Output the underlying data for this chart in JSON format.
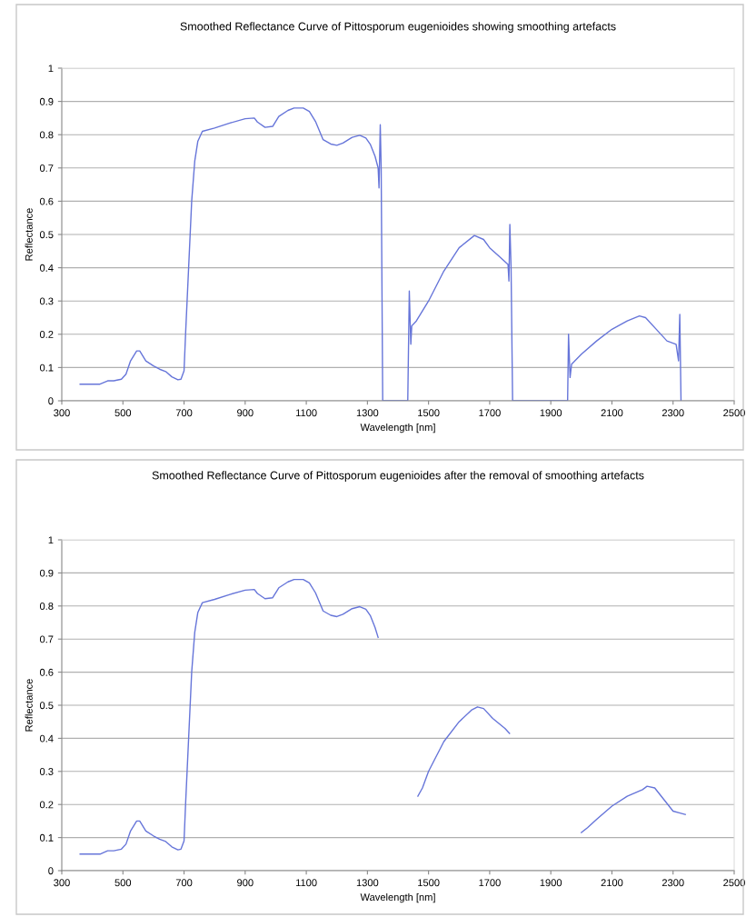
{
  "chart_data": [
    {
      "type": "line",
      "title": "Smoothed Reflectance Curve of Pittosporum eugenioides showing smoothing artefacts",
      "xlabel": "Wavelength [nm]",
      "ylabel": "Reflectance",
      "xlim": [
        300,
        2500
      ],
      "xticks": [
        300,
        500,
        700,
        900,
        1100,
        1300,
        1500,
        1700,
        1900,
        2100,
        2300,
        2500
      ],
      "ylim": [
        0,
        1
      ],
      "yticks": [
        0,
        0.1,
        0.2,
        0.3,
        0.4,
        0.5,
        0.6,
        0.7,
        0.8,
        0.9,
        1
      ],
      "grid": "y",
      "marker": "none",
      "line_style": "solid",
      "series": [
        {
          "color": "#6675d9",
          "x": [
            360,
            400,
            425,
            450,
            470,
            495,
            510,
            525,
            545,
            555,
            575,
            600,
            620,
            640,
            660,
            680,
            690,
            700,
            705,
            715,
            725,
            735,
            745,
            760,
            800,
            850,
            900,
            930,
            940,
            965,
            990,
            1010,
            1040,
            1060,
            1090,
            1110,
            1130,
            1155,
            1180,
            1200,
            1220,
            1250,
            1275,
            1295,
            1310,
            1325,
            1335,
            1338,
            1342,
            1345,
            1350,
            1432,
            1437,
            1442,
            1445,
            1460,
            1500,
            1550,
            1600,
            1650,
            1680,
            1700,
            1730,
            1760,
            1763,
            1766,
            1770,
            1775,
            1955,
            1958,
            1963,
            1968,
            2000,
            2050,
            2100,
            2150,
            2190,
            2210,
            2250,
            2280,
            2310,
            2318,
            2322,
            2326
          ],
          "values": [
            0.05,
            0.05,
            0.05,
            0.06,
            0.06,
            0.065,
            0.08,
            0.12,
            0.15,
            0.15,
            0.12,
            0.105,
            0.095,
            0.088,
            0.072,
            0.063,
            0.065,
            0.09,
            0.2,
            0.4,
            0.6,
            0.72,
            0.78,
            0.81,
            0.82,
            0.835,
            0.848,
            0.85,
            0.838,
            0.822,
            0.825,
            0.855,
            0.873,
            0.88,
            0.88,
            0.87,
            0.84,
            0.785,
            0.772,
            0.768,
            0.775,
            0.792,
            0.798,
            0.79,
            0.77,
            0.735,
            0.7,
            0.64,
            0.83,
            0.7,
            0,
            0,
            0.33,
            0.17,
            0.225,
            0.24,
            0.3,
            0.39,
            0.46,
            0.497,
            0.485,
            0.46,
            0.435,
            0.41,
            0.36,
            0.53,
            0.4,
            0,
            0,
            0.2,
            0.07,
            0.11,
            0.14,
            0.18,
            0.215,
            0.24,
            0.255,
            0.25,
            0.21,
            0.18,
            0.17,
            0.12,
            0.26,
            0
          ]
        }
      ]
    },
    {
      "type": "line",
      "title": "Smoothed Reflectance Curve of Pittosporum eugenioides after the removal of smoothing artefacts",
      "xlabel": "Wavelength [nm]",
      "ylabel": "Reflectance",
      "xlim": [
        300,
        2500
      ],
      "xticks": [
        300,
        500,
        700,
        900,
        1100,
        1300,
        1500,
        1700,
        1900,
        2100,
        2300,
        2500
      ],
      "ylim": [
        0,
        1
      ],
      "yticks": [
        0,
        0.1,
        0.2,
        0.3,
        0.4,
        0.5,
        0.6,
        0.7,
        0.8,
        0.9,
        1
      ],
      "grid": "y",
      "marker": "none",
      "line_style": "solid",
      "series": [
        {
          "color": "#6675d9",
          "x": [
            360,
            400,
            425,
            450,
            470,
            495,
            510,
            525,
            545,
            555,
            575,
            600,
            620,
            640,
            660,
            680,
            690,
            700,
            705,
            715,
            725,
            735,
            745,
            760,
            800,
            850,
            900,
            930,
            940,
            965,
            990,
            1010,
            1040,
            1060,
            1090,
            1110,
            1130,
            1155,
            1180,
            1200,
            1220,
            1250,
            1275,
            1295,
            1310,
            1325,
            1335,
            1400,
            1465,
            1480,
            1500,
            1550,
            1600,
            1640,
            1660,
            1680,
            1710,
            1730,
            1750,
            1765,
            1880,
            2000,
            2020,
            2050,
            2100,
            2150,
            2200,
            2215,
            2240,
            2270,
            2300,
            2320,
            2340
          ],
          "values": [
            0.05,
            0.05,
            0.05,
            0.06,
            0.06,
            0.065,
            0.08,
            0.12,
            0.15,
            0.15,
            0.12,
            0.105,
            0.095,
            0.088,
            0.072,
            0.063,
            0.065,
            0.09,
            0.2,
            0.4,
            0.6,
            0.72,
            0.78,
            0.81,
            0.82,
            0.835,
            0.848,
            0.85,
            0.838,
            0.822,
            0.825,
            0.855,
            0.873,
            0.88,
            0.88,
            0.87,
            0.84,
            0.785,
            0.772,
            0.768,
            0.775,
            0.792,
            0.798,
            0.79,
            0.77,
            0.735,
            0.705,
            null,
            0.225,
            0.25,
            0.3,
            0.39,
            0.45,
            0.485,
            0.495,
            0.49,
            0.46,
            0.445,
            0.43,
            0.415,
            null,
            0.115,
            0.13,
            0.155,
            0.195,
            0.225,
            0.245,
            0.255,
            0.25,
            0.215,
            0.18,
            0.175,
            0.17
          ]
        }
      ]
    }
  ]
}
